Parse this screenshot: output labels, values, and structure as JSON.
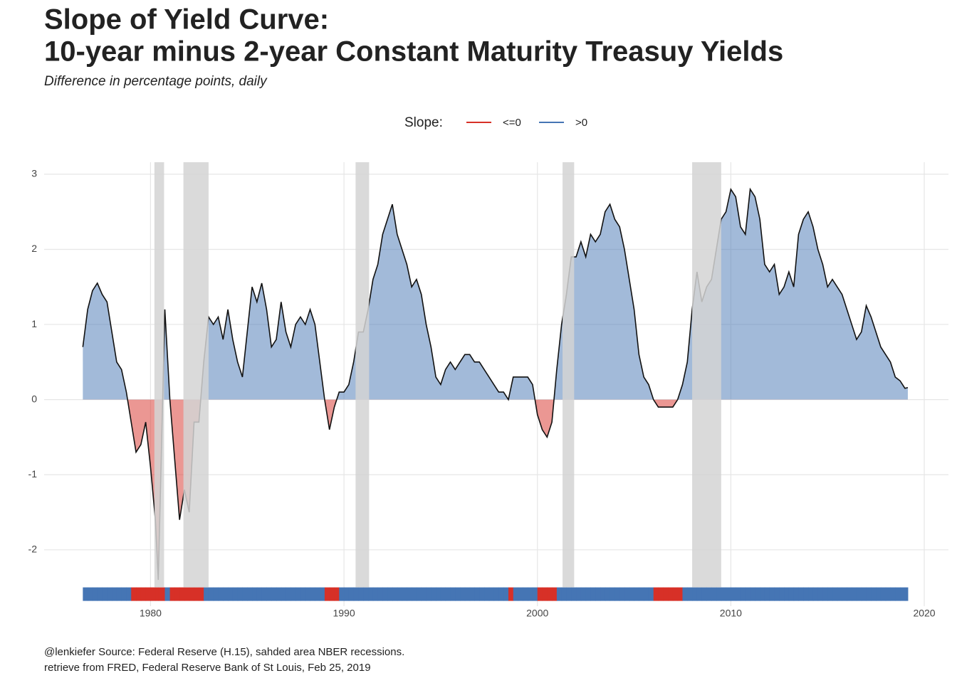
{
  "chart_data": {
    "type": "area",
    "title": [
      "Slope of Yield Curve:",
      "10-year minus 2-year Constant Maturity Treasuy Yields"
    ],
    "subtitle": "Difference in percentage points, daily",
    "caption": [
      "@lenkiefer Source: Federal Reserve (H.15), sahded area NBER recessions.",
      "retrieve from FRED, Federal Reserve Bank of St Louis, Feb 25, 2019"
    ],
    "legend": {
      "title": "Slope:",
      "position": "top",
      "entries": [
        {
          "name": "<=0",
          "color": "#d73027"
        },
        {
          "name": ">0",
          "color": "#4575b4"
        }
      ]
    },
    "line_color": "#111111",
    "recession_color": "#d3d3d3",
    "recessions": [
      [
        1980.2,
        1980.7
      ],
      [
        1981.7,
        1983.0
      ],
      [
        1990.6,
        1991.3
      ],
      [
        2001.3,
        2001.9
      ],
      [
        2008.0,
        2009.5
      ]
    ],
    "xlim": [
      1974.5,
      2021.25
    ],
    "xticks": [
      1980,
      1990,
      2000,
      2010,
      2020
    ],
    "ylim": [
      -2.75,
      3.16
    ],
    "yticks": [
      -2,
      -1,
      0,
      1,
      2,
      3
    ],
    "grid": true,
    "x": [
      1976.5,
      1976.75,
      1977,
      1977.25,
      1977.5,
      1977.75,
      1978,
      1978.25,
      1978.5,
      1978.75,
      1979,
      1979.25,
      1979.5,
      1979.75,
      1980,
      1980.25,
      1980.4,
      1980.74,
      1981,
      1981.25,
      1981.5,
      1981.75,
      1982,
      1982.25,
      1982.5,
      1982.75,
      1983,
      1983.25,
      1983.5,
      1983.75,
      1984,
      1984.25,
      1984.5,
      1984.75,
      1985,
      1985.25,
      1985.5,
      1985.75,
      1986,
      1986.25,
      1986.5,
      1986.75,
      1987,
      1987.25,
      1987.5,
      1987.75,
      1988,
      1988.25,
      1988.5,
      1988.75,
      1989,
      1989.25,
      1989.5,
      1989.75,
      1990,
      1990.25,
      1990.5,
      1990.75,
      1991,
      1991.25,
      1991.5,
      1991.75,
      1992,
      1992.25,
      1992.5,
      1992.75,
      1993,
      1993.25,
      1993.5,
      1993.75,
      1994,
      1994.25,
      1994.5,
      1994.75,
      1995,
      1995.25,
      1995.5,
      1995.75,
      1996,
      1996.25,
      1996.5,
      1996.75,
      1997,
      1997.25,
      1997.5,
      1997.75,
      1998,
      1998.25,
      1998.5,
      1998.75,
      1999,
      1999.25,
      1999.5,
      1999.75,
      2000,
      2000.25,
      2000.5,
      2000.75,
      2001,
      2001.25,
      2001.5,
      2001.75,
      2002,
      2002.25,
      2002.5,
      2002.75,
      2003,
      2003.25,
      2003.5,
      2003.75,
      2004,
      2004.25,
      2004.5,
      2004.75,
      2005,
      2005.25,
      2005.5,
      2005.75,
      2006,
      2006.25,
      2006.5,
      2006.75,
      2007,
      2007.25,
      2007.5,
      2007.75,
      2008,
      2008.25,
      2008.5,
      2008.75,
      2009,
      2009.25,
      2009.5,
      2009.75,
      2010,
      2010.25,
      2010.5,
      2010.75,
      2011,
      2011.25,
      2011.5,
      2011.75,
      2012,
      2012.25,
      2012.5,
      2012.75,
      2013,
      2013.25,
      2013.5,
      2013.75,
      2014,
      2014.25,
      2014.5,
      2014.75,
      2015,
      2015.25,
      2015.5,
      2015.75,
      2016,
      2016.25,
      2016.5,
      2016.75,
      2017,
      2017.25,
      2017.5,
      2017.75,
      2018,
      2018.25,
      2018.5,
      2018.75,
      2019,
      2019.15
    ],
    "series": [
      {
        "name": "Slope",
        "values": [
          0.7,
          1.2,
          1.45,
          1.55,
          1.4,
          1.3,
          0.9,
          0.5,
          0.4,
          0.1,
          -0.3,
          -0.7,
          -0.6,
          -0.3,
          -0.9,
          -1.6,
          -2.4,
          1.2,
          0.0,
          -0.8,
          -1.6,
          -1.2,
          -1.5,
          -0.3,
          -0.3,
          0.5,
          1.1,
          1.0,
          1.1,
          0.8,
          1.2,
          0.8,
          0.5,
          0.3,
          0.9,
          1.5,
          1.3,
          1.55,
          1.2,
          0.7,
          0.8,
          1.3,
          0.9,
          0.7,
          1.0,
          1.1,
          1.0,
          1.2,
          1.0,
          0.5,
          0.0,
          -0.4,
          -0.1,
          0.1,
          0.1,
          0.2,
          0.5,
          0.9,
          0.9,
          1.2,
          1.6,
          1.8,
          2.2,
          2.4,
          2.6,
          2.2,
          2.0,
          1.8,
          1.5,
          1.6,
          1.4,
          1.0,
          0.7,
          0.3,
          0.2,
          0.4,
          0.5,
          0.4,
          0.5,
          0.6,
          0.6,
          0.5,
          0.5,
          0.4,
          0.3,
          0.2,
          0.1,
          0.1,
          0.0,
          0.3,
          0.3,
          0.3,
          0.3,
          0.2,
          -0.2,
          -0.4,
          -0.5,
          -0.3,
          0.4,
          1.0,
          1.4,
          1.9,
          1.9,
          2.1,
          1.9,
          2.2,
          2.1,
          2.2,
          2.5,
          2.6,
          2.4,
          2.3,
          2.0,
          1.6,
          1.2,
          0.6,
          0.3,
          0.2,
          0.0,
          -0.1,
          -0.1,
          -0.1,
          -0.1,
          0.0,
          0.2,
          0.5,
          1.2,
          1.7,
          1.3,
          1.5,
          1.6,
          2.0,
          2.4,
          2.5,
          2.8,
          2.7,
          2.3,
          2.2,
          2.8,
          2.7,
          2.4,
          1.8,
          1.7,
          1.8,
          1.4,
          1.5,
          1.7,
          1.5,
          2.2,
          2.4,
          2.5,
          2.3,
          2.0,
          1.8,
          1.5,
          1.6,
          1.5,
          1.4,
          1.2,
          1.0,
          0.8,
          0.9,
          1.25,
          1.1,
          0.9,
          0.7,
          0.6,
          0.5,
          0.3,
          0.25,
          0.15,
          0.16
        ]
      }
    ]
  }
}
